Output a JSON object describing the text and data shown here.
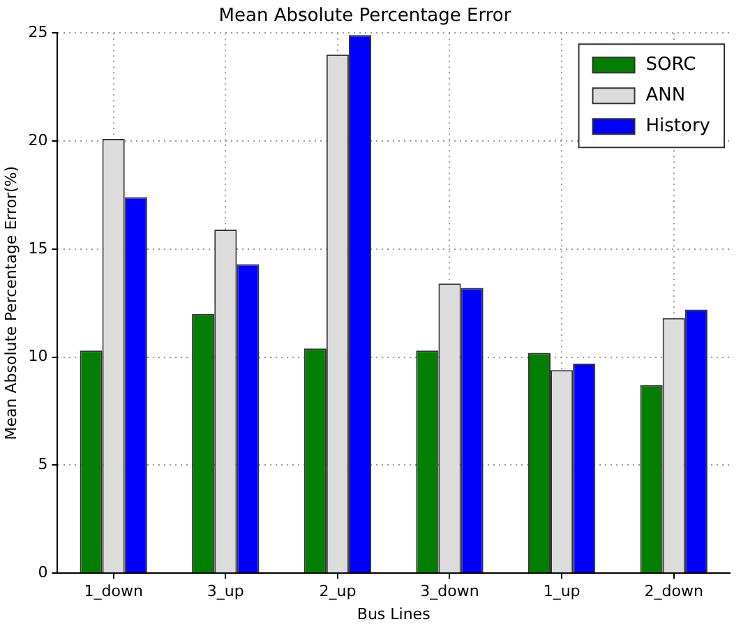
{
  "chart_data": {
    "type": "bar",
    "title": "Mean Absolute Percentage Error",
    "xlabel": "Bus Lines",
    "ylabel": "Mean Absolute Percentage Error(%)",
    "categories": [
      "1_down",
      "3_up",
      "2_up",
      "3_down",
      "1_up",
      "2_down"
    ],
    "series": [
      {
        "name": "SORC",
        "color": "#007f00",
        "values": [
          10.3,
          12.0,
          10.4,
          10.3,
          10.2,
          8.7
        ]
      },
      {
        "name": "ANN",
        "color": "#dcdcdc",
        "values": [
          20.1,
          15.9,
          24.0,
          13.4,
          9.4,
          11.8
        ]
      },
      {
        "name": "History",
        "color": "#0000ff",
        "values": [
          17.4,
          14.3,
          24.9,
          13.2,
          9.7,
          12.2
        ]
      }
    ],
    "ylim": [
      0,
      25
    ],
    "yticks": [
      0,
      5,
      10,
      15,
      20,
      25
    ],
    "grid": true,
    "legend": "top right"
  }
}
